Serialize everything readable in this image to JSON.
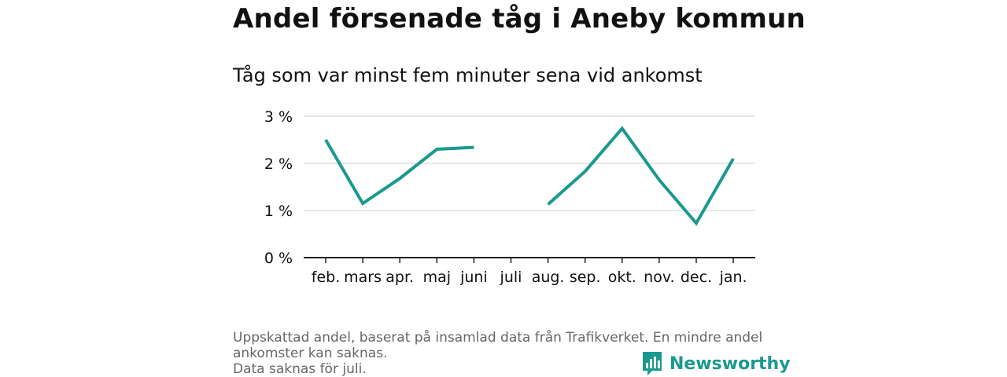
{
  "header": {
    "title": "Andel försenade tåg i Aneby kommun",
    "subtitle": "Tåg som var minst fem minuter sena vid ankomst"
  },
  "chart_data": {
    "type": "line",
    "title": "Andel försenade tåg i Aneby kommun",
    "subtitle": "Tåg som var minst fem minuter sena vid ankomst",
    "categories": [
      "feb.",
      "mars",
      "apr.",
      "maj",
      "juni",
      "juli",
      "aug.",
      "sep.",
      "okt.",
      "nov.",
      "dec.",
      "jan."
    ],
    "series": [
      {
        "values": [
          2.5,
          1.15,
          1.68,
          2.3,
          2.34,
          null,
          1.13,
          1.83,
          2.74,
          1.65,
          0.73,
          2.1
        ],
        "color": "#1a9a8e"
      }
    ],
    "ylim": [
      0,
      3
    ],
    "yticks": [
      0,
      1,
      2,
      3
    ],
    "ytick_labels": [
      "0 %",
      "1 %",
      "2 %",
      "3 %"
    ],
    "xlabel": "",
    "ylabel": "",
    "grid": true,
    "legend": "none"
  },
  "footer": {
    "line1": "Uppskattad andel, baserat på insamlad data från Trafikverket. En mindre andel ankomster kan saknas.",
    "line2": "Data saknas för juli."
  },
  "brand": {
    "name": "Newsworthy",
    "icon": "bar-chart-logo-icon"
  }
}
